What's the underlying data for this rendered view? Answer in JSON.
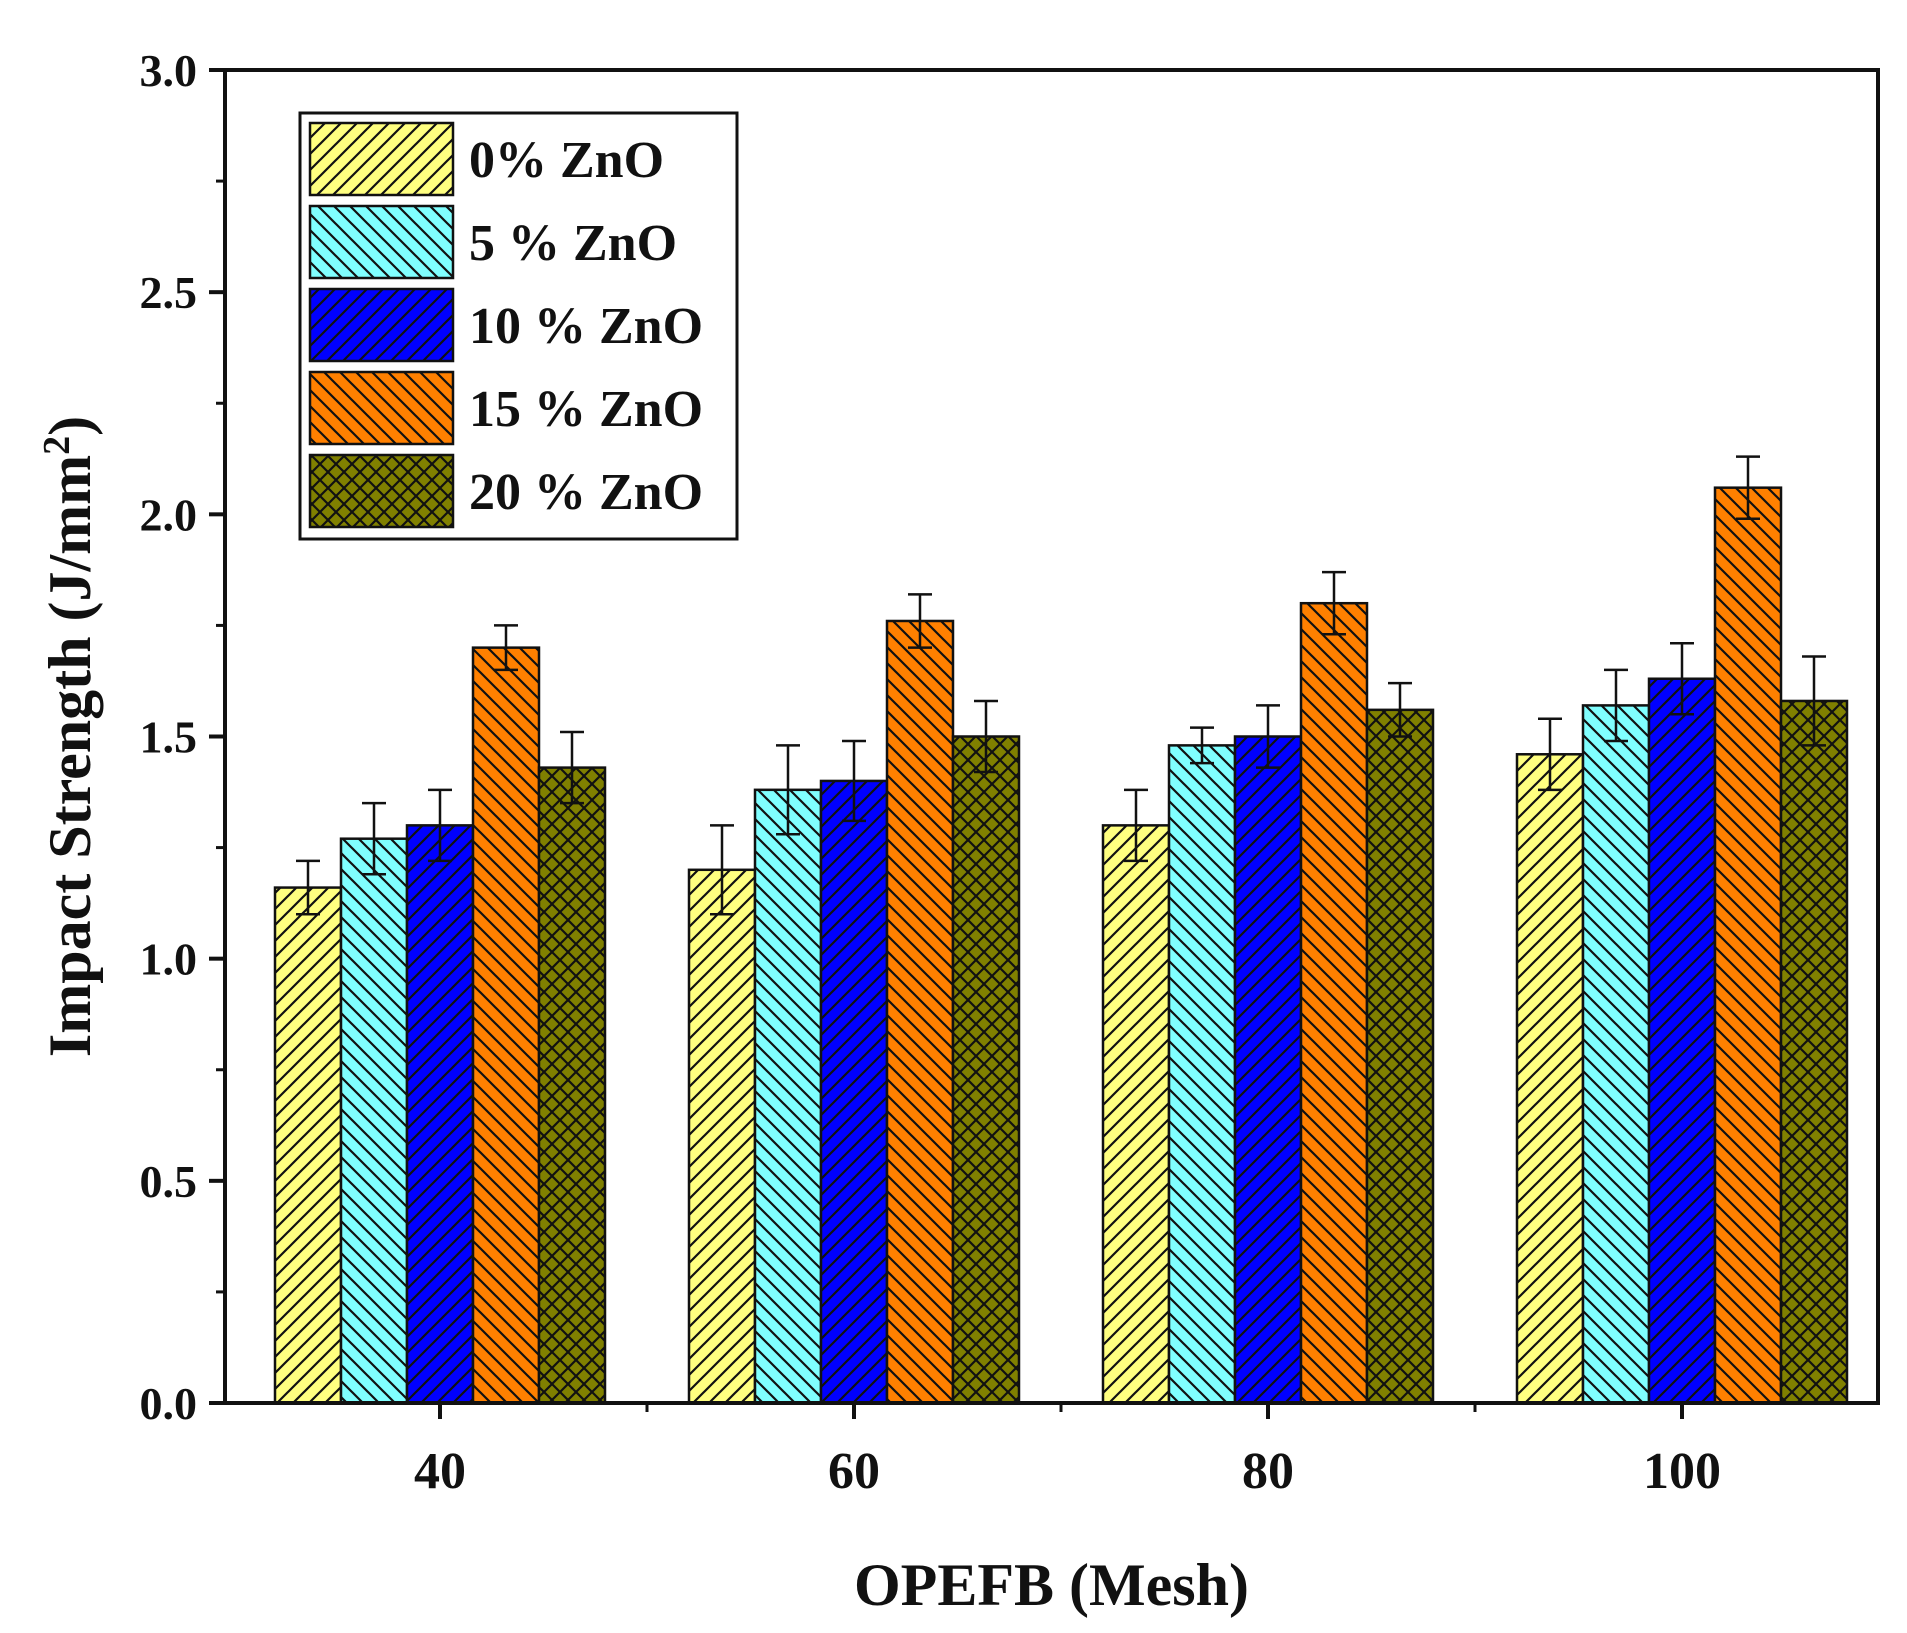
{
  "chart_data": {
    "type": "bar",
    "title": "",
    "xlabel": "OPEFB (Mesh)",
    "ylabel": "Impact Strength (J/mm",
    "ylabel_superscript": "2",
    "ylabel_suffix": ")",
    "ylim": [
      0,
      3.0
    ],
    "yticks": [
      "0.0",
      "0.5",
      "1.0",
      "1.5",
      "2.0",
      "2.5",
      "3.0"
    ],
    "yticks_values": [
      0,
      0.5,
      1.0,
      1.5,
      2.0,
      2.5,
      3.0
    ],
    "categories": [
      "40",
      "60",
      "80",
      "100"
    ],
    "legend_position": "top-left",
    "grid": false,
    "series": [
      {
        "name": "0% ZnO",
        "color": "#FFFF80",
        "pattern": "diag-up",
        "values": [
          1.16,
          1.2,
          1.3,
          1.46
        ],
        "errors": [
          0.06,
          0.1,
          0.08,
          0.08
        ]
      },
      {
        "name": "5 % ZnO",
        "color": "#80FFFF",
        "pattern": "diag-down",
        "values": [
          1.27,
          1.38,
          1.48,
          1.57
        ],
        "errors": [
          0.08,
          0.1,
          0.04,
          0.08
        ]
      },
      {
        "name": "10 % ZnO",
        "color": "#0000FF",
        "pattern": "diag-up",
        "values": [
          1.3,
          1.4,
          1.5,
          1.63
        ],
        "errors": [
          0.08,
          0.09,
          0.07,
          0.08
        ]
      },
      {
        "name": "15 % ZnO",
        "color": "#FF8000",
        "pattern": "diag-down",
        "values": [
          1.7,
          1.76,
          1.8,
          2.06
        ],
        "errors": [
          0.05,
          0.06,
          0.07,
          0.07
        ]
      },
      {
        "name": "20 % ZnO",
        "color": "#808000",
        "pattern": "cross",
        "values": [
          1.43,
          1.5,
          1.56,
          1.58
        ],
        "errors": [
          0.08,
          0.08,
          0.06,
          0.1
        ]
      }
    ]
  }
}
